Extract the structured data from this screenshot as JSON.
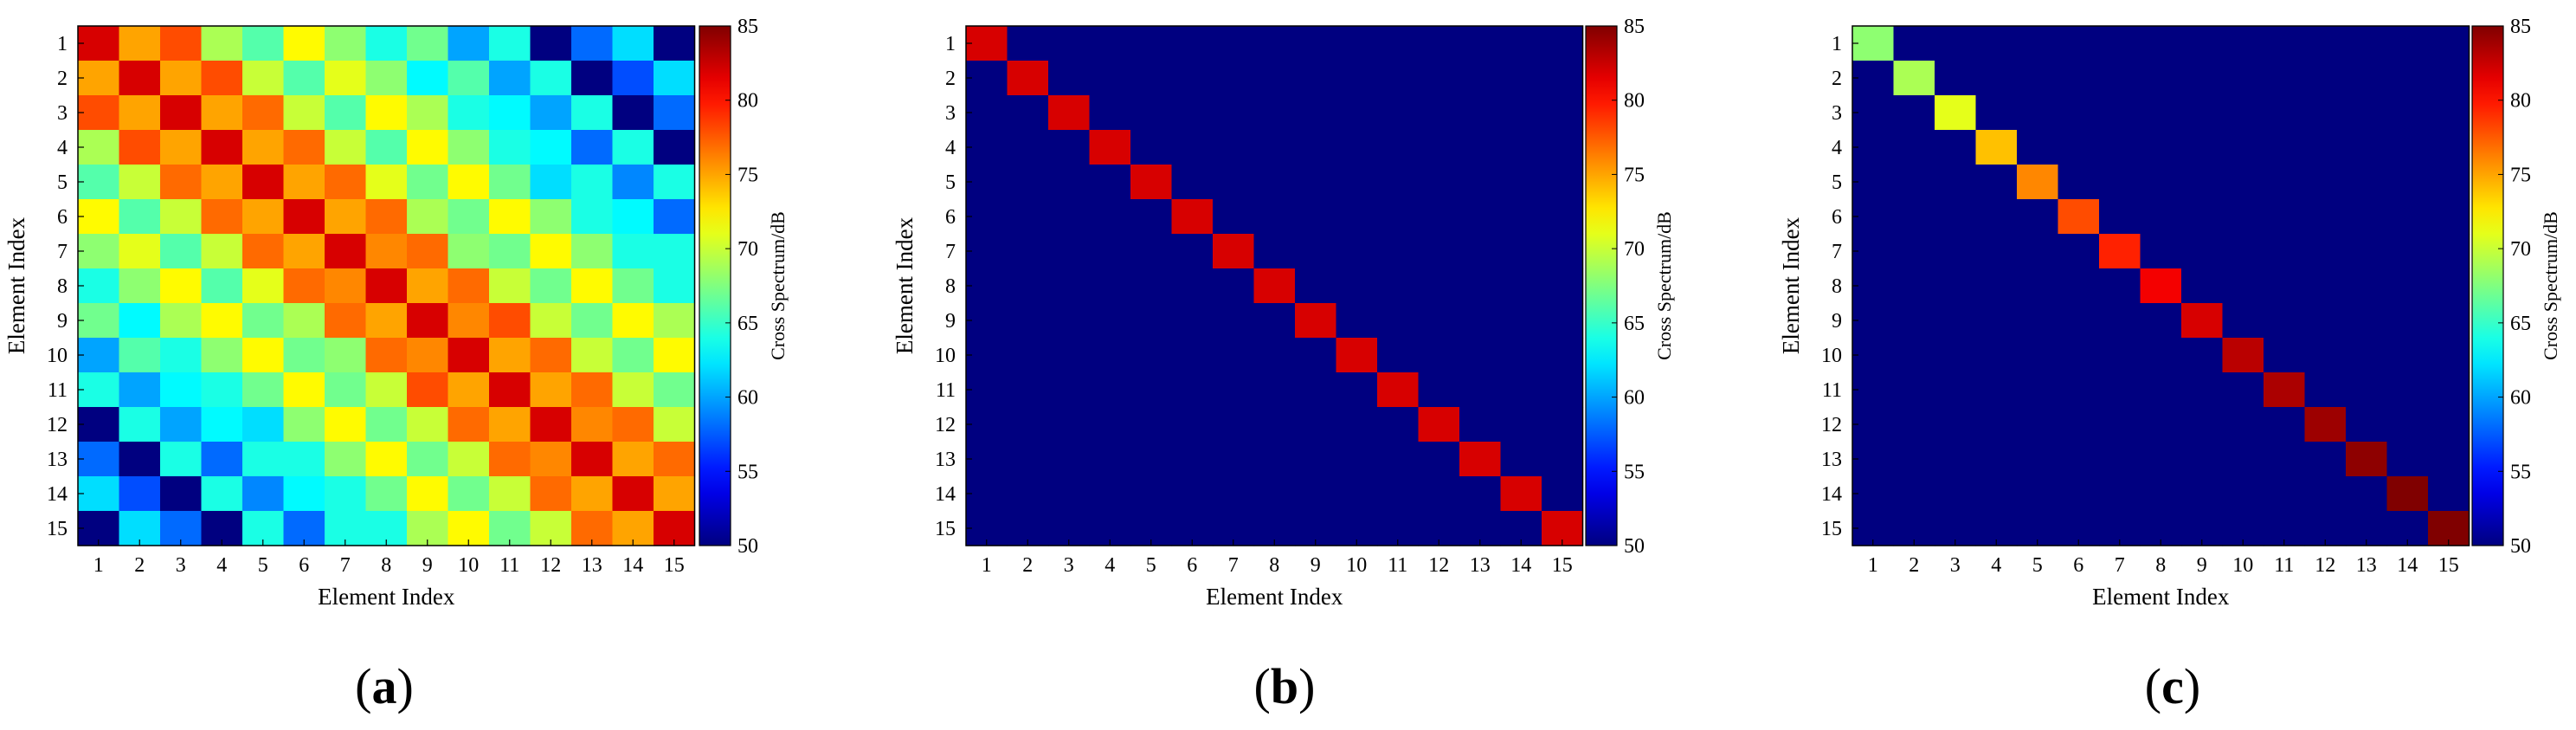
{
  "chart_data": [
    {
      "type": "heatmap",
      "panel_label": "a",
      "xlabel": "Element Index",
      "ylabel": "Element Index",
      "x_categories": [
        "1",
        "2",
        "3",
        "4",
        "5",
        "6",
        "7",
        "8",
        "9",
        "10",
        "11",
        "12",
        "13",
        "14",
        "15"
      ],
      "y_categories": [
        "1",
        "2",
        "3",
        "4",
        "5",
        "6",
        "7",
        "8",
        "9",
        "10",
        "11",
        "12",
        "13",
        "14",
        "15"
      ],
      "colorbar": {
        "label": "Cross Spectrum/dB",
        "range": [
          50,
          85
        ],
        "ticks": [
          "50",
          "55",
          "60",
          "65",
          "70",
          "75",
          "80",
          "85"
        ],
        "colormap": "jet"
      },
      "values": [
        [
          82,
          75,
          78,
          69,
          66,
          72,
          68,
          64,
          67,
          60,
          64,
          50,
          58,
          62,
          50
        ],
        [
          75,
          82,
          75,
          78,
          70,
          66,
          71,
          68,
          63,
          66,
          60,
          64,
          50,
          57,
          62
        ],
        [
          78,
          75,
          82,
          75,
          77,
          70,
          66,
          72,
          69,
          64,
          63,
          60,
          64,
          50,
          58
        ],
        [
          69,
          78,
          75,
          82,
          75,
          77,
          70,
          66,
          72,
          68,
          64,
          63,
          58,
          64,
          50
        ],
        [
          66,
          70,
          77,
          75,
          82,
          75,
          77,
          71,
          67,
          72,
          67,
          62,
          64,
          59,
          64
        ],
        [
          72,
          66,
          70,
          77,
          75,
          82,
          75,
          77,
          69,
          67,
          72,
          68,
          64,
          63,
          58
        ],
        [
          68,
          71,
          66,
          70,
          77,
          75,
          82,
          76,
          77,
          68,
          67,
          72,
          68,
          64,
          64
        ],
        [
          64,
          68,
          72,
          66,
          71,
          77,
          76,
          82,
          75,
          77,
          70,
          67,
          72,
          67,
          64
        ],
        [
          67,
          63,
          69,
          72,
          67,
          69,
          77,
          75,
          82,
          76,
          78,
          70,
          67,
          72,
          69
        ],
        [
          60,
          66,
          64,
          68,
          72,
          67,
          68,
          77,
          76,
          82,
          75,
          77,
          70,
          67,
          72
        ],
        [
          64,
          60,
          63,
          64,
          67,
          72,
          67,
          70,
          78,
          75,
          82,
          75,
          77,
          70,
          67
        ],
        [
          50,
          64,
          60,
          63,
          62,
          68,
          72,
          67,
          70,
          77,
          75,
          82,
          76,
          77,
          70
        ],
        [
          58,
          50,
          64,
          58,
          64,
          64,
          68,
          72,
          67,
          70,
          77,
          76,
          82,
          75,
          77
        ],
        [
          62,
          57,
          50,
          64,
          59,
          63,
          64,
          67,
          72,
          67,
          70,
          77,
          75,
          82,
          75
        ],
        [
          50,
          62,
          58,
          50,
          64,
          58,
          64,
          64,
          69,
          72,
          67,
          70,
          77,
          75,
          82
        ]
      ]
    },
    {
      "type": "heatmap",
      "panel_label": "b",
      "xlabel": "Element Index",
      "ylabel": "Element Index",
      "x_categories": [
        "1",
        "2",
        "3",
        "4",
        "5",
        "6",
        "7",
        "8",
        "9",
        "10",
        "11",
        "12",
        "13",
        "14",
        "15"
      ],
      "y_categories": [
        "1",
        "2",
        "3",
        "4",
        "5",
        "6",
        "7",
        "8",
        "9",
        "10",
        "11",
        "12",
        "13",
        "14",
        "15"
      ],
      "colorbar": {
        "label": "Cross Spectrum/dB",
        "range": [
          50,
          85
        ],
        "ticks": [
          "50",
          "55",
          "60",
          "65",
          "70",
          "75",
          "80",
          "85"
        ],
        "colormap": "jet"
      },
      "diagonal_values": [
        82,
        82,
        82,
        82,
        82,
        82,
        82,
        82,
        82,
        82,
        82,
        82,
        82,
        82,
        82
      ],
      "off_diagonal_value": 50
    },
    {
      "type": "heatmap",
      "panel_label": "c",
      "xlabel": "Element Index",
      "ylabel": "Element Index",
      "x_categories": [
        "1",
        "2",
        "3",
        "4",
        "5",
        "6",
        "7",
        "8",
        "9",
        "10",
        "11",
        "12",
        "13",
        "14",
        "15"
      ],
      "y_categories": [
        "1",
        "2",
        "3",
        "4",
        "5",
        "6",
        "7",
        "8",
        "9",
        "10",
        "11",
        "12",
        "13",
        "14",
        "15"
      ],
      "colorbar": {
        "label": "Cross Spectrum/dB",
        "range": [
          50,
          85
        ],
        "ticks": [
          "50",
          "55",
          "60",
          "65",
          "70",
          "75",
          "80",
          "85"
        ],
        "colormap": "jet"
      },
      "diagonal_values": [
        68,
        69,
        71,
        74,
        76,
        78,
        79.5,
        81,
        82,
        83,
        83.5,
        84,
        84.5,
        85,
        86
      ],
      "off_diagonal_value": 50
    }
  ]
}
